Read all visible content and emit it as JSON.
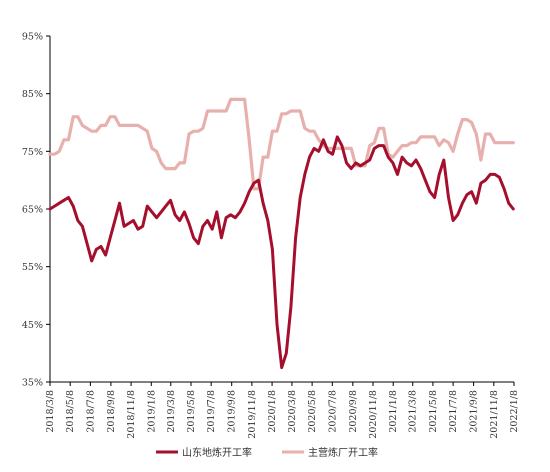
{
  "chart_data": {
    "type": "line",
    "y_ticks": [
      "95%",
      "85%",
      "75%",
      "65%",
      "55%",
      "45%",
      "35%"
    ],
    "y_tick_values": [
      95,
      85,
      75,
      65,
      55,
      45,
      35
    ],
    "ylim": [
      35,
      95
    ],
    "x_ticks": [
      "2018/3/8",
      "2018/5/8",
      "2018/7/8",
      "2018/9/8",
      "2018/11/8",
      "2019/1/8",
      "2019/3/8",
      "2019/5/8",
      "2019/7/8",
      "2019/9/8",
      "2019/11/8",
      "2020/1/8",
      "2020/3/8",
      "2020/5/8",
      "2020/7/8",
      "2020/9/8",
      "2020/11/8",
      "2021/1/8",
      "2021/3/8",
      "2021/5/8",
      "2021/7/8",
      "2021/9/8",
      "2021/11/8",
      "2022/1/8"
    ],
    "xlim": [
      "2018/3/8",
      "2022/1/8"
    ],
    "grid": false,
    "legend_position": "bottom",
    "series": [
      {
        "name": "山东地炼开工率",
        "color": "#a50f2d",
        "points": [
          [
            "2018/3/8",
            65
          ],
          [
            "2018/3/22",
            65.5
          ],
          [
            "2018/4/5",
            66
          ],
          [
            "2018/4/19",
            66.5
          ],
          [
            "2018/5/3",
            67
          ],
          [
            "2018/5/17",
            65.5
          ],
          [
            "2018/5/31",
            63
          ],
          [
            "2018/6/14",
            62
          ],
          [
            "2018/6/28",
            59
          ],
          [
            "2018/7/12",
            56
          ],
          [
            "2018/7/26",
            58
          ],
          [
            "2018/8/9",
            58.5
          ],
          [
            "2018/8/23",
            57
          ],
          [
            "2018/9/6",
            60
          ],
          [
            "2018/9/20",
            63
          ],
          [
            "2018/10/4",
            66
          ],
          [
            "2018/10/18",
            62
          ],
          [
            "2018/11/1",
            62.5
          ],
          [
            "2018/11/15",
            63
          ],
          [
            "2018/11/29",
            61.5
          ],
          [
            "2018/12/13",
            62
          ],
          [
            "2018/12/27",
            65.5
          ],
          [
            "2019/1/10",
            64.5
          ],
          [
            "2019/1/24",
            63.5
          ],
          [
            "2019/2/7",
            64.5
          ],
          [
            "2019/2/21",
            65.5
          ],
          [
            "2019/3/7",
            66.5
          ],
          [
            "2019/3/21",
            64
          ],
          [
            "2019/4/4",
            63
          ],
          [
            "2019/4/18",
            64.5
          ],
          [
            "2019/5/2",
            62.5
          ],
          [
            "2019/5/16",
            60
          ],
          [
            "2019/5/30",
            59
          ],
          [
            "2019/6/13",
            62
          ],
          [
            "2019/6/27",
            63
          ],
          [
            "2019/7/11",
            61.5
          ],
          [
            "2019/7/25",
            64.5
          ],
          [
            "2019/8/8",
            60
          ],
          [
            "2019/8/22",
            63.5
          ],
          [
            "2019/9/5",
            64
          ],
          [
            "2019/9/19",
            63.5
          ],
          [
            "2019/10/3",
            64.5
          ],
          [
            "2019/10/17",
            66
          ],
          [
            "2019/10/31",
            68
          ],
          [
            "2019/11/14",
            69.5
          ],
          [
            "2019/11/28",
            70
          ],
          [
            "2019/12/12",
            66
          ],
          [
            "2019/12/26",
            63
          ],
          [
            "2020/1/9",
            58
          ],
          [
            "2020/1/23",
            45
          ],
          [
            "2020/2/6",
            37.5
          ],
          [
            "2020/2/20",
            40
          ],
          [
            "2020/3/5",
            48
          ],
          [
            "2020/3/19",
            60
          ],
          [
            "2020/4/2",
            67
          ],
          [
            "2020/4/16",
            71
          ],
          [
            "2020/4/30",
            74
          ],
          [
            "2020/5/14",
            75.5
          ],
          [
            "2020/5/28",
            75
          ],
          [
            "2020/6/11",
            77
          ],
          [
            "2020/6/25",
            75
          ],
          [
            "2020/7/9",
            74.5
          ],
          [
            "2020/7/23",
            77.5
          ],
          [
            "2020/8/6",
            76
          ],
          [
            "2020/8/20",
            73
          ],
          [
            "2020/9/3",
            72
          ],
          [
            "2020/9/17",
            73
          ],
          [
            "2020/10/1",
            72.5
          ],
          [
            "2020/10/15",
            73
          ],
          [
            "2020/10/29",
            73.5
          ],
          [
            "2020/11/12",
            75.5
          ],
          [
            "2020/11/26",
            76
          ],
          [
            "2020/12/10",
            76
          ],
          [
            "2020/12/24",
            74
          ],
          [
            "2021/1/7",
            73
          ],
          [
            "2021/1/21",
            71
          ],
          [
            "2021/2/4",
            74
          ],
          [
            "2021/2/18",
            73
          ],
          [
            "2021/3/4",
            72.5
          ],
          [
            "2021/3/18",
            73.5
          ],
          [
            "2021/4/1",
            72
          ],
          [
            "2021/4/15",
            70
          ],
          [
            "2021/4/29",
            68
          ],
          [
            "2021/5/13",
            67
          ],
          [
            "2021/5/27",
            71
          ],
          [
            "2021/6/10",
            73.5
          ],
          [
            "2021/6/24",
            67
          ],
          [
            "2021/7/8",
            63
          ],
          [
            "2021/7/22",
            64
          ],
          [
            "2021/8/5",
            66
          ],
          [
            "2021/8/19",
            67.5
          ],
          [
            "2021/9/2",
            68
          ],
          [
            "2021/9/16",
            66
          ],
          [
            "2021/9/30",
            69.5
          ],
          [
            "2021/10/14",
            70
          ],
          [
            "2021/10/28",
            71
          ],
          [
            "2021/11/11",
            71
          ],
          [
            "2021/11/25",
            70.5
          ],
          [
            "2021/12/9",
            68.5
          ],
          [
            "2021/12/23",
            66
          ],
          [
            "2022/1/6",
            65
          ]
        ]
      },
      {
        "name": "主营炼厂开工率",
        "color": "#e8b0ad",
        "points": [
          [
            "2018/3/8",
            74.5
          ],
          [
            "2018/3/22",
            74.5
          ],
          [
            "2018/4/5",
            75
          ],
          [
            "2018/4/19",
            77
          ],
          [
            "2018/5/3",
            77
          ],
          [
            "2018/5/17",
            81
          ],
          [
            "2018/5/31",
            81
          ],
          [
            "2018/6/14",
            79.5
          ],
          [
            "2018/6/28",
            79
          ],
          [
            "2018/7/12",
            78.5
          ],
          [
            "2018/7/26",
            78.5
          ],
          [
            "2018/8/9",
            79.5
          ],
          [
            "2018/8/23",
            79.5
          ],
          [
            "2018/9/6",
            81
          ],
          [
            "2018/9/20",
            81
          ],
          [
            "2018/10/4",
            79.5
          ],
          [
            "2018/10/18",
            79.5
          ],
          [
            "2018/11/1",
            79.5
          ],
          [
            "2018/11/15",
            79.5
          ],
          [
            "2018/11/29",
            79.5
          ],
          [
            "2018/12/13",
            79
          ],
          [
            "2018/12/27",
            78.5
          ],
          [
            "2019/1/10",
            75.5
          ],
          [
            "2019/1/24",
            75
          ],
          [
            "2019/2/7",
            73
          ],
          [
            "2019/2/21",
            72
          ],
          [
            "2019/3/7",
            72
          ],
          [
            "2019/3/21",
            72
          ],
          [
            "2019/4/4",
            73
          ],
          [
            "2019/4/18",
            73
          ],
          [
            "2019/5/2",
            78
          ],
          [
            "2019/5/16",
            78.5
          ],
          [
            "2019/5/30",
            78.5
          ],
          [
            "2019/6/13",
            79
          ],
          [
            "2019/6/27",
            82
          ],
          [
            "2019/7/11",
            82
          ],
          [
            "2019/7/25",
            82
          ],
          [
            "2019/8/8",
            82
          ],
          [
            "2019/8/22",
            82
          ],
          [
            "2019/9/5",
            84
          ],
          [
            "2019/9/19",
            84
          ],
          [
            "2019/10/3",
            84
          ],
          [
            "2019/10/17",
            84
          ],
          [
            "2019/10/31",
            77
          ],
          [
            "2019/11/14",
            68.5
          ],
          [
            "2019/11/28",
            68.5
          ],
          [
            "2019/12/12",
            74
          ],
          [
            "2019/12/26",
            74
          ],
          [
            "2020/1/9",
            78.5
          ],
          [
            "2020/1/23",
            78.5
          ],
          [
            "2020/2/6",
            81.5
          ],
          [
            "2020/2/20",
            81.5
          ],
          [
            "2020/3/5",
            82
          ],
          [
            "2020/3/19",
            82
          ],
          [
            "2020/4/2",
            82
          ],
          [
            "2020/4/16",
            79
          ],
          [
            "2020/4/30",
            78.5
          ],
          [
            "2020/5/14",
            78.5
          ],
          [
            "2020/5/28",
            77
          ],
          [
            "2020/6/11",
            76
          ],
          [
            "2020/6/25",
            75.5
          ],
          [
            "2020/7/9",
            75.5
          ],
          [
            "2020/7/23",
            75.5
          ],
          [
            "2020/8/6",
            75.5
          ],
          [
            "2020/8/20",
            75.5
          ],
          [
            "2020/9/3",
            75.5
          ],
          [
            "2020/9/17",
            72.5
          ],
          [
            "2020/10/1",
            72.5
          ],
          [
            "2020/10/15",
            72.5
          ],
          [
            "2020/10/29",
            76
          ],
          [
            "2020/11/12",
            76.5
          ],
          [
            "2020/11/26",
            79
          ],
          [
            "2020/12/10",
            79
          ],
          [
            "2020/12/24",
            74.5
          ],
          [
            "2021/1/7",
            74
          ],
          [
            "2021/1/21",
            75
          ],
          [
            "2021/2/4",
            76
          ],
          [
            "2021/2/18",
            76
          ],
          [
            "2021/3/4",
            76.5
          ],
          [
            "2021/3/18",
            76.5
          ],
          [
            "2021/4/1",
            77.5
          ],
          [
            "2021/4/15",
            77.5
          ],
          [
            "2021/4/29",
            77.5
          ],
          [
            "2021/5/13",
            77.5
          ],
          [
            "2021/5/27",
            76
          ],
          [
            "2021/6/10",
            77
          ],
          [
            "2021/6/24",
            76.5
          ],
          [
            "2021/7/8",
            75
          ],
          [
            "2021/7/22",
            78
          ],
          [
            "2021/8/5",
            80.5
          ],
          [
            "2021/8/19",
            80.5
          ],
          [
            "2021/9/2",
            80
          ],
          [
            "2021/9/16",
            78
          ],
          [
            "2021/9/30",
            73.5
          ],
          [
            "2021/10/14",
            78
          ],
          [
            "2021/10/28",
            78
          ],
          [
            "2021/11/11",
            76.5
          ],
          [
            "2021/11/25",
            76.5
          ],
          [
            "2021/12/9",
            76.5
          ],
          [
            "2021/12/23",
            76.5
          ],
          [
            "2022/1/6",
            76.5
          ]
        ]
      }
    ]
  }
}
